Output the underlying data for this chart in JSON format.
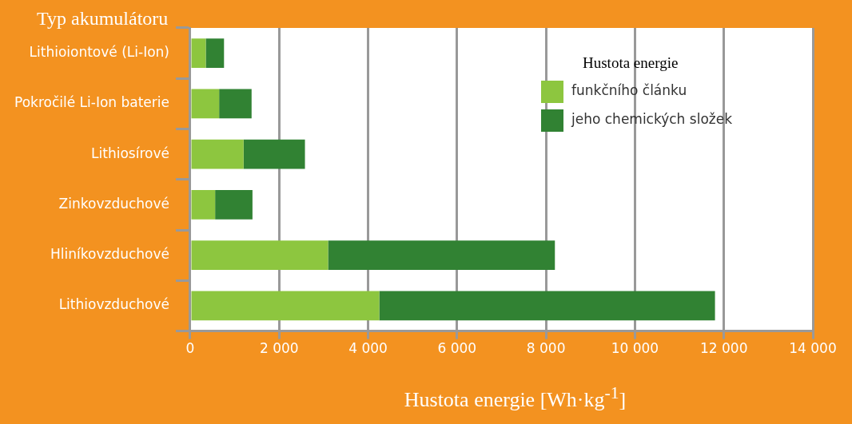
{
  "chart_data": {
    "type": "bar",
    "orientation": "horizontal",
    "stacked": true,
    "ylabel": "Typ akumulátoru",
    "xlabel": "Hustota energie [Wh·kg$^{-1}$]",
    "legend_title": "Hustota energie",
    "categories": [
      "Lithioiontové (Li-Ion)",
      "Pokročilé Li-Ion baterie",
      "Lithiosírové",
      "Zinkovzduchové",
      "Hliníkovzduchové",
      "Lithiovzduchové"
    ],
    "series": [
      {
        "name": "funkčního článku",
        "color": "#8dc63f",
        "values": [
          350,
          650,
          1200,
          560,
          3100,
          4250
        ]
      },
      {
        "name": "jeho chemických složek",
        "color": "#318233",
        "values": [
          410,
          730,
          1380,
          840,
          5100,
          7550
        ]
      }
    ],
    "xlim": [
      0,
      14000
    ],
    "xticks": [
      0,
      {
        "value": 2000,
        "label": "2 000"
      },
      {
        "value": 4000,
        "label": "4 000"
      },
      {
        "value": 6000,
        "label": "6 000"
      },
      {
        "value": 8000,
        "label": "8 000"
      },
      {
        "value": 10000,
        "label": "10 000"
      },
      {
        "value": 12000,
        "label": "12 000"
      },
      {
        "value": 14000,
        "label": "14 000"
      }
    ],
    "grid": "x",
    "legend": "top right"
  }
}
